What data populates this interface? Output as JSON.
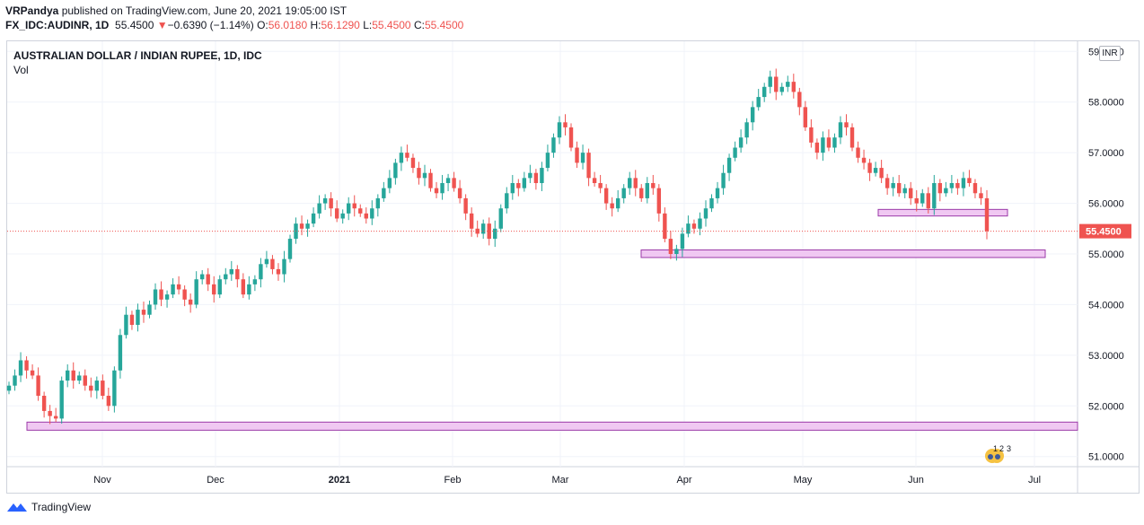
{
  "header": {
    "author": "VRPandya",
    "published_text": " published on TradingView.com, June 20, 2021 19:05:00 IST",
    "symbol_line": "FX_IDC:AUDINR, 1D",
    "last": "55.4500",
    "change_arrow": "▼",
    "change": "−0.6390 (−1.14%)",
    "o_label": "O:",
    "o": "56.0180",
    "h_label": "H:",
    "h": "56.1290",
    "l_label": "L:",
    "l": "55.4500",
    "c_label": "C:",
    "c": "55.4500"
  },
  "chart_title": "AUSTRALIAN DOLLAR / INDIAN RUPEE, 1D, IDC",
  "vol_label": "Vol",
  "currency_badge": "INR",
  "last_price_label": "55.4500",
  "brand": "TradingView",
  "colors": {
    "up": "#26a69a",
    "down": "#ef5350",
    "zone_fill": "#f0c8f2",
    "zone_stroke": "#9b3aa8",
    "grid": "#f0f3fa"
  },
  "chart_data": {
    "type": "candlestick",
    "ylim": [
      50.8,
      59.2
    ],
    "y_ticks": [
      "51.0000",
      "52.0000",
      "53.0000",
      "54.0000",
      "55.0000",
      "56.0000",
      "57.0000",
      "58.0000",
      "59.0000"
    ],
    "x_ticks": [
      "Nov",
      "Dec",
      "2021",
      "Feb",
      "Mar",
      "Apr",
      "May",
      "Jun",
      "Jul"
    ],
    "last_price": 55.45,
    "support_zones": [
      {
        "y_low": 51.52,
        "y_high": 51.68
      },
      {
        "y_low": 54.93,
        "y_high": 55.08
      },
      {
        "y_low": 55.75,
        "y_high": 55.88
      }
    ],
    "close_path": [
      52.4,
      52.6,
      52.9,
      52.7,
      52.6,
      52.2,
      51.9,
      51.8,
      51.75,
      52.5,
      52.7,
      52.5,
      52.6,
      52.4,
      52.3,
      52.5,
      52.2,
      52.0,
      52.7,
      53.4,
      53.8,
      53.6,
      53.9,
      53.8,
      54.0,
      54.3,
      54.1,
      54.2,
      54.4,
      54.3,
      54.1,
      54.0,
      54.5,
      54.6,
      54.4,
      54.2,
      54.5,
      54.6,
      54.7,
      54.5,
      54.2,
      54.4,
      54.5,
      54.8,
      54.9,
      54.7,
      54.6,
      54.9,
      55.3,
      55.6,
      55.5,
      55.6,
      55.8,
      56.0,
      56.1,
      55.9,
      55.7,
      55.8,
      56.0,
      55.9,
      55.8,
      55.7,
      55.9,
      56.1,
      56.3,
      56.5,
      56.8,
      57.0,
      56.9,
      56.7,
      56.5,
      56.6,
      56.3,
      56.2,
      56.4,
      56.5,
      56.3,
      56.1,
      55.8,
      55.5,
      55.4,
      55.6,
      55.3,
      55.5,
      55.9,
      56.2,
      56.4,
      56.3,
      56.5,
      56.6,
      56.4,
      56.7,
      57.0,
      57.3,
      57.6,
      57.5,
      57.1,
      56.8,
      57.0,
      56.5,
      56.4,
      56.3,
      56.0,
      55.9,
      56.1,
      56.3,
      56.5,
      56.3,
      56.1,
      56.4,
      56.3,
      55.8,
      55.3,
      55.0,
      55.1,
      55.4,
      55.6,
      55.5,
      55.7,
      55.9,
      56.1,
      56.3,
      56.6,
      56.9,
      57.1,
      57.3,
      57.6,
      57.9,
      58.1,
      58.3,
      58.5,
      58.2,
      58.3,
      58.4,
      58.2,
      57.9,
      57.5,
      57.2,
      57.0,
      57.3,
      57.1,
      57.3,
      57.6,
      57.5,
      57.1,
      56.9,
      56.8,
      56.6,
      56.7,
      56.5,
      56.3,
      56.4,
      56.2,
      56.3,
      56.1,
      56.0,
      56.2,
      55.9,
      56.4,
      56.2,
      56.3,
      56.4,
      56.3,
      56.5,
      56.4,
      56.2,
      56.1,
      55.45
    ]
  }
}
